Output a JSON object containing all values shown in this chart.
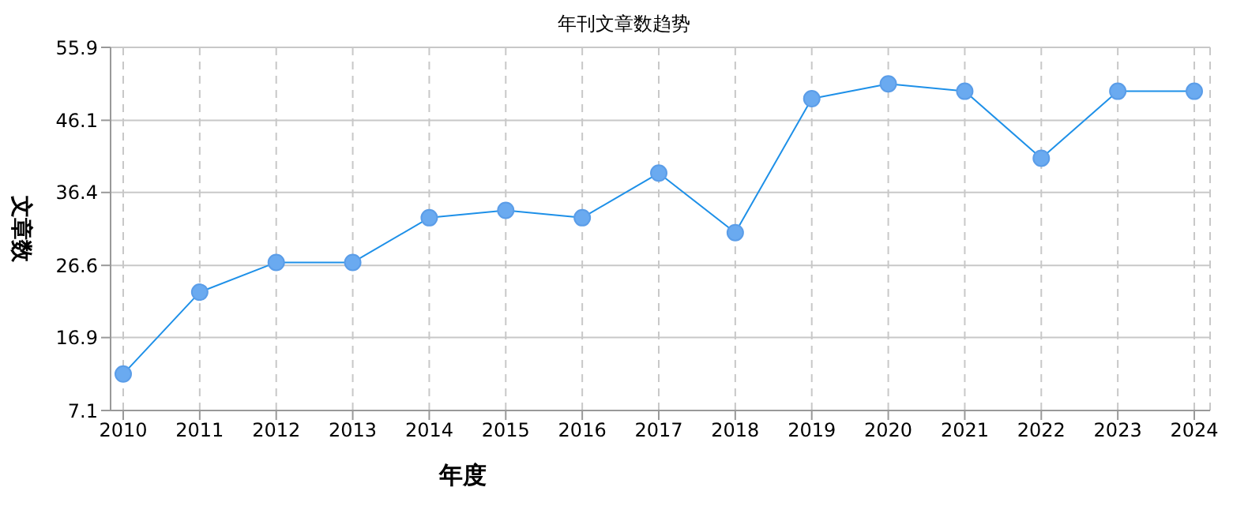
{
  "chart_data": {
    "type": "line",
    "title": "年刊文章数趋势",
    "xlabel": "年度",
    "ylabel": "文章数",
    "categories": [
      "2010",
      "2011",
      "2012",
      "2013",
      "2014",
      "2015",
      "2016",
      "2017",
      "2018",
      "2019",
      "2020",
      "2021",
      "2022",
      "2023",
      "2024"
    ],
    "series": [
      {
        "color": "#1e90e8",
        "values": [
          12,
          23,
          27,
          27,
          33,
          34,
          33,
          39,
          31,
          49,
          51,
          50,
          41,
          50,
          50
        ]
      }
    ],
    "ylim": [
      7.1,
      55.9
    ],
    "yticks": [
      7.1,
      16.9,
      26.6,
      36.4,
      46.1,
      55.9
    ],
    "grid": true,
    "marker": "circle",
    "line_style": "solid",
    "legend": false
  }
}
